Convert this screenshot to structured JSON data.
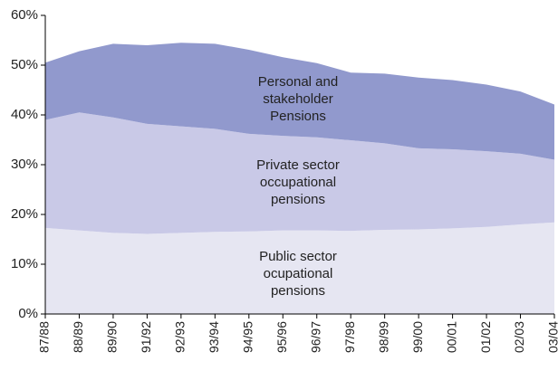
{
  "chart_data": {
    "type": "stacked_area",
    "categories": [
      "87/88",
      "88/89",
      "89/90",
      "91/92",
      "92/93",
      "93/94",
      "94/95",
      "95/96",
      "96/97",
      "97/98",
      "98/99",
      "99/00",
      "00/01",
      "01/02",
      "02/03",
      "03/04"
    ],
    "series": [
      {
        "name": "Public sector ocupational pensions",
        "color": "#e6e6f2",
        "values": [
          17.3,
          16.8,
          16.3,
          16.1,
          16.3,
          16.5,
          16.6,
          16.8,
          16.8,
          16.7,
          16.9,
          17.0,
          17.2,
          17.5,
          18.0,
          18.4
        ]
      },
      {
        "name": "Private sector occupational pensions",
        "color": "#c9c9e7",
        "values": [
          21.7,
          23.7,
          23.2,
          22.1,
          21.4,
          20.7,
          19.6,
          19.0,
          18.7,
          18.2,
          17.4,
          16.3,
          15.9,
          15.2,
          14.2,
          12.6
        ]
      },
      {
        "name": "Personal and stakeholder Pensions",
        "color": "#9199cd",
        "values": [
          11.5,
          12.3,
          14.8,
          15.8,
          16.8,
          17.1,
          16.9,
          15.8,
          14.9,
          13.6,
          14.0,
          14.2,
          13.9,
          13.4,
          12.5,
          11.1
        ]
      }
    ],
    "ylim": [
      0,
      60
    ],
    "yticks": [
      {
        "value": 0,
        "label": "0%"
      },
      {
        "value": 10,
        "label": "10%"
      },
      {
        "value": 20,
        "label": "20%"
      },
      {
        "value": 30,
        "label": "30%"
      },
      {
        "value": 40,
        "label": "40%"
      },
      {
        "value": 50,
        "label": "50%"
      },
      {
        "value": 60,
        "label": "60%"
      }
    ]
  }
}
